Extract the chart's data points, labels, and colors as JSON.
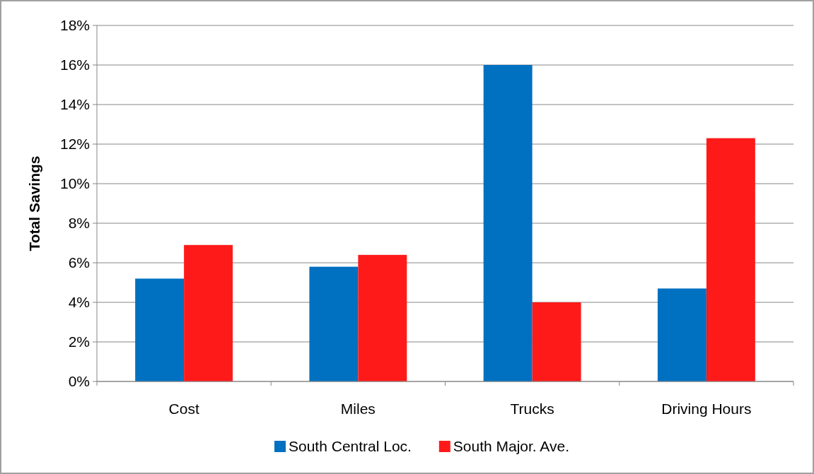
{
  "chart_data": {
    "type": "bar",
    "ylabel": "Total Savings",
    "categories": [
      "Cost",
      "Miles",
      "Trucks",
      "Driving Hours"
    ],
    "series": [
      {
        "name": "South Central Loc.",
        "color": "#0070c0",
        "values": [
          5.2,
          5.8,
          16.0,
          4.7
        ]
      },
      {
        "name": "South Major. Ave.",
        "color": "#ff1a1a",
        "values": [
          6.9,
          6.4,
          4.0,
          12.3
        ]
      }
    ],
    "ylim": [
      0,
      18
    ],
    "yticks": [
      {
        "value": 0,
        "label": "0%"
      },
      {
        "value": 2,
        "label": "2%"
      },
      {
        "value": 4,
        "label": "4%"
      },
      {
        "value": 6,
        "label": "6%"
      },
      {
        "value": 8,
        "label": "8%"
      },
      {
        "value": 10,
        "label": "10%"
      },
      {
        "value": 12,
        "label": "12%"
      },
      {
        "value": 14,
        "label": "14%"
      },
      {
        "value": 16,
        "label": "16%"
      },
      {
        "value": 18,
        "label": "18%"
      }
    ],
    "grid": "y",
    "legend": "bottom"
  }
}
